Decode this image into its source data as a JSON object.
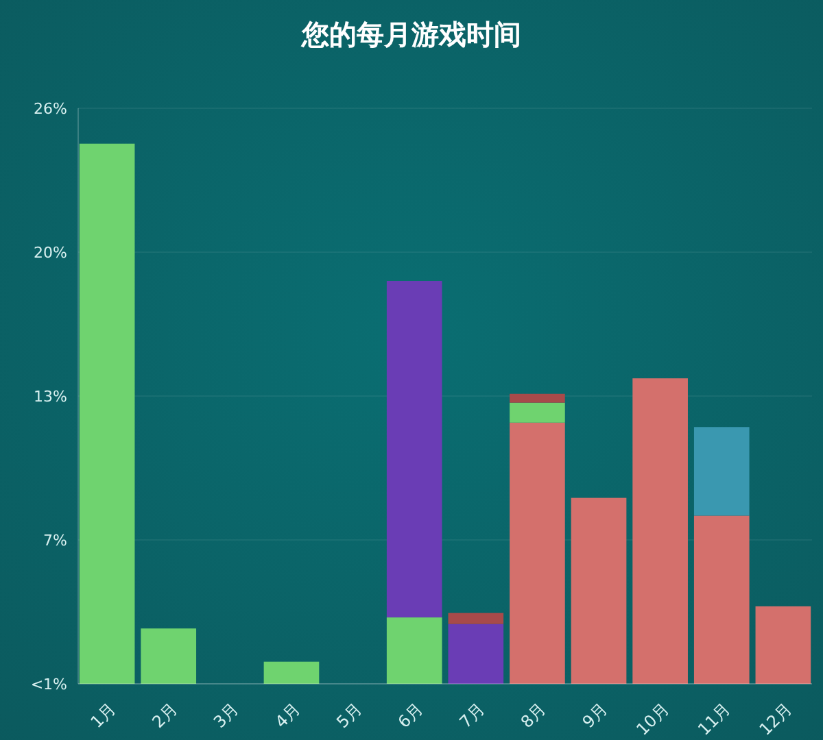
{
  "chart_data": {
    "type": "bar",
    "title": "您的每月游戏时间",
    "stacked": true,
    "grid": "y",
    "categories": [
      "1月",
      "2月",
      "3月",
      "4月",
      "5月",
      "6月",
      "7月",
      "8月",
      "9月",
      "10月",
      "11月",
      "12月"
    ],
    "series": [
      {
        "color": "#d4706c",
        "values": [
          null,
          null,
          null,
          null,
          null,
          null,
          null,
          11.8,
          8.4,
          13.8,
          7.6,
          3.5
        ]
      },
      {
        "color": "#6fd36f",
        "values": [
          24.4,
          2.5,
          null,
          1.0,
          null,
          3.0,
          null,
          0.9,
          null,
          null,
          null,
          null
        ]
      },
      {
        "color": "#6a3db5",
        "values": [
          null,
          null,
          null,
          null,
          null,
          15.2,
          2.7,
          null,
          null,
          null,
          null,
          null
        ]
      },
      {
        "color": "#a84a4a",
        "values": [
          null,
          null,
          null,
          null,
          null,
          null,
          0.5,
          0.4,
          null,
          null,
          null,
          null
        ]
      },
      {
        "color": "#3a98b0",
        "values": [
          null,
          null,
          null,
          null,
          null,
          null,
          null,
          null,
          null,
          null,
          4.0,
          null
        ]
      }
    ],
    "ylim": [
      0,
      26
    ],
    "yticks": [
      {
        "value": 0,
        "label": "<1%"
      },
      {
        "value": 6.5,
        "label": "7%"
      },
      {
        "value": 13,
        "label": "13%"
      },
      {
        "value": 19.5,
        "label": "20%"
      },
      {
        "value": 26,
        "label": "26%"
      }
    ]
  }
}
